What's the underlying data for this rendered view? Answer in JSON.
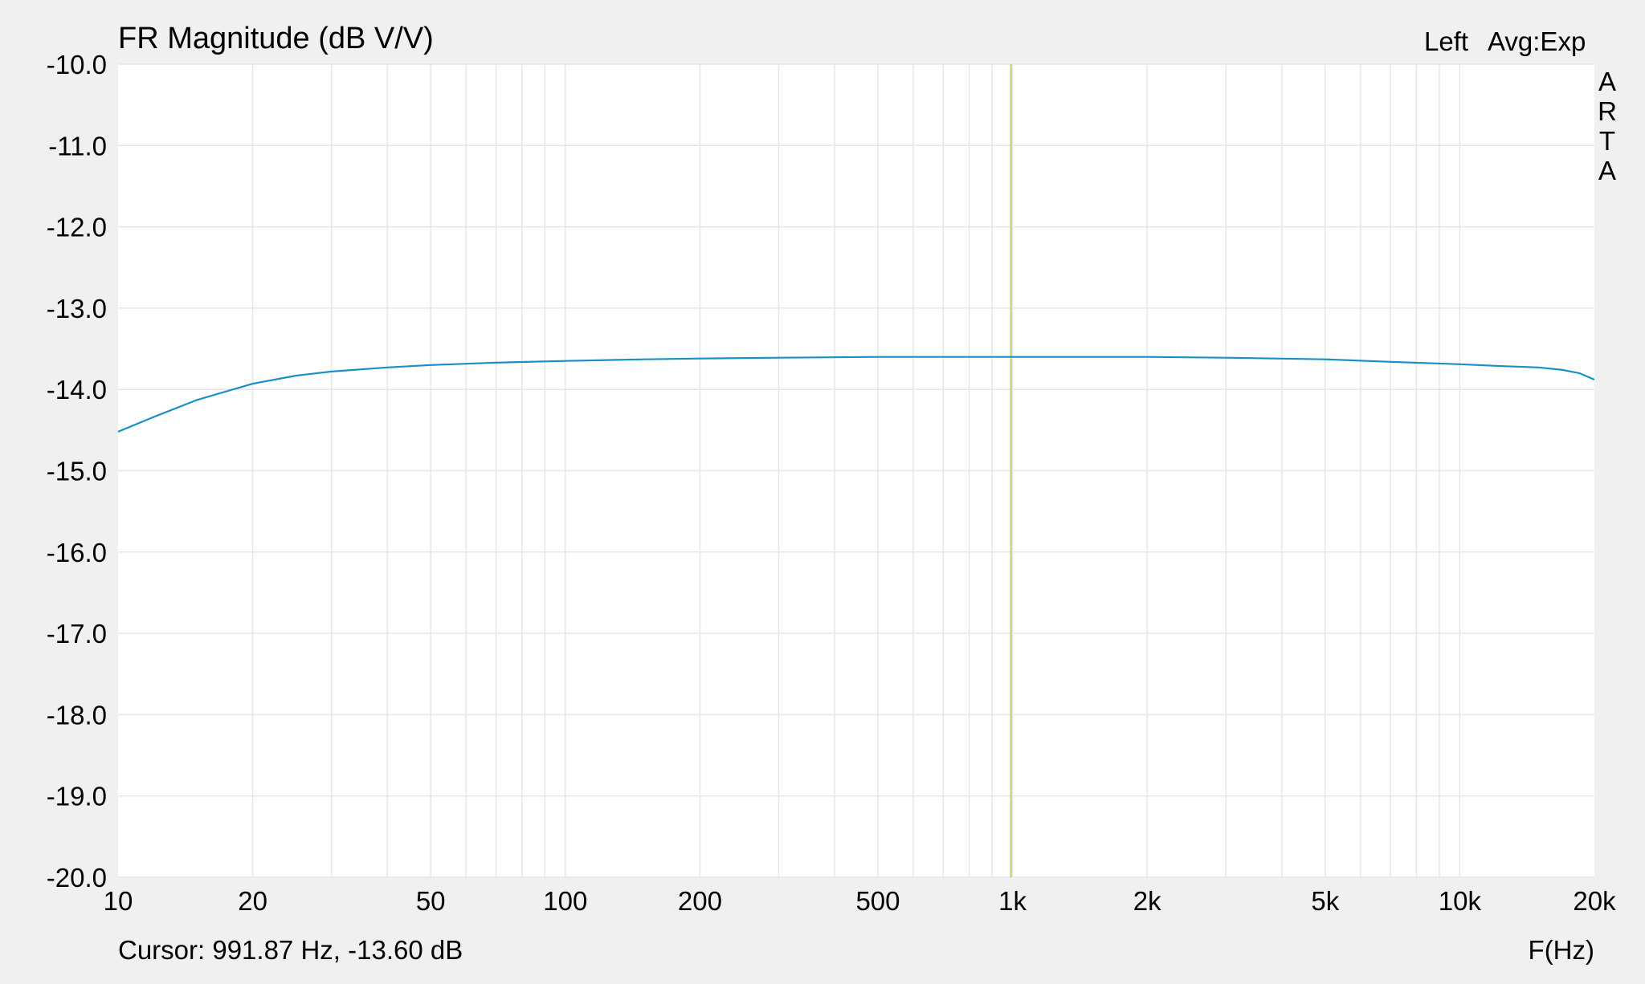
{
  "chart_data": {
    "type": "line",
    "title": "FR Magnitude (dB V/V)",
    "channel_label": "Left",
    "averaging_label": "Avg:Exp",
    "brand_label": "ARTA",
    "xlabel": "F(Hz)",
    "ylabel": "",
    "x_scale": "log",
    "xlim": [
      10,
      20000
    ],
    "ylim": [
      -20,
      -10
    ],
    "x_ticks": [
      10,
      20,
      50,
      100,
      200,
      500,
      1000,
      2000,
      5000,
      10000,
      20000
    ],
    "x_tick_labels": [
      "10",
      "20",
      "50",
      "100",
      "200",
      "500",
      "1k",
      "2k",
      "5k",
      "10k",
      "20k"
    ],
    "y_ticks": [
      -10,
      -11,
      -12,
      -13,
      -14,
      -15,
      -16,
      -17,
      -18,
      -19,
      -20
    ],
    "y_tick_labels": [
      "-10.0",
      "-11.0",
      "-12.0",
      "-13.0",
      "-14.0",
      "-15.0",
      "-16.0",
      "-17.0",
      "-18.0",
      "-19.0",
      "-20.0"
    ],
    "grid": true,
    "cursor": {
      "x": 991.87,
      "y": -13.6,
      "label": "Cursor: 991.87 Hz, -13.60 dB"
    },
    "series": [
      {
        "color": "#1a8fc4",
        "x": [
          10,
          12,
          15,
          20,
          25,
          30,
          40,
          50,
          70,
          100,
          150,
          200,
          300,
          500,
          700,
          1000,
          2000,
          3000,
          5000,
          7000,
          10000,
          12000,
          15000,
          17000,
          18500,
          20000
        ],
        "y": [
          -14.52,
          -14.34,
          -14.13,
          -13.93,
          -13.83,
          -13.78,
          -13.73,
          -13.7,
          -13.67,
          -13.65,
          -13.63,
          -13.62,
          -13.61,
          -13.6,
          -13.6,
          -13.6,
          -13.6,
          -13.61,
          -13.63,
          -13.66,
          -13.69,
          -13.71,
          -13.73,
          -13.76,
          -13.8,
          -13.88
        ]
      }
    ],
    "colors": {
      "background": "#f0f0f0",
      "plot_area": "#ffffff",
      "grid": "#e6e6e6",
      "cursor_line": "#c8d86a"
    }
  }
}
